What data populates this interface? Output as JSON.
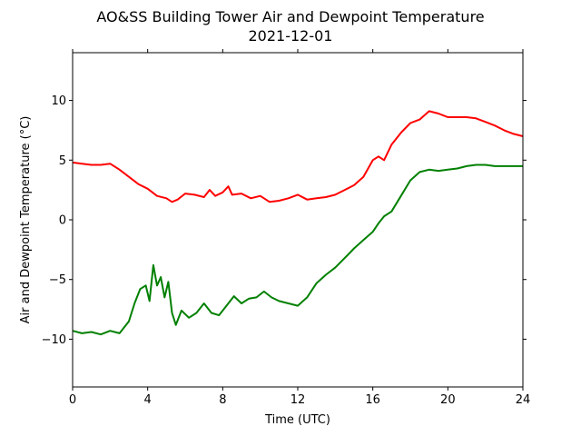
{
  "chart_data": {
    "type": "line",
    "title": "AO&SS Building Tower Air and Dewpoint Temperature",
    "subtitle": "2021-12-01",
    "xlabel": "Time (UTC)",
    "ylabel": "Air and Dewpoint Temperature (°C)",
    "xlim": [
      0,
      24
    ],
    "ylim": [
      -14,
      14
    ],
    "xticks": [
      0,
      4,
      8,
      12,
      16,
      20,
      24
    ],
    "yticks": [
      -10,
      -5,
      0,
      5,
      10
    ],
    "grid": false,
    "legend": "none",
    "series": [
      {
        "color": "#ff0000",
        "x": [
          0,
          0.5,
          1,
          1.5,
          2,
          2.5,
          3,
          3.5,
          4,
          4.5,
          5,
          5.3,
          5.6,
          6,
          6.5,
          7,
          7.3,
          7.6,
          8,
          8.3,
          8.5,
          9,
          9.5,
          10,
          10.5,
          11,
          11.5,
          12,
          12.5,
          13,
          13.5,
          14,
          14.5,
          15,
          15.5,
          16,
          16.3,
          16.6,
          17,
          17.5,
          18,
          18.5,
          19,
          19.5,
          20,
          20.5,
          21,
          21.5,
          22,
          22.5,
          23,
          23.5,
          24
        ],
        "y": [
          4.8,
          4.7,
          4.6,
          4.6,
          4.7,
          4.2,
          3.6,
          3.0,
          2.6,
          2.0,
          1.8,
          1.5,
          1.7,
          2.2,
          2.1,
          1.9,
          2.5,
          2.0,
          2.3,
          2.8,
          2.1,
          2.2,
          1.8,
          2.0,
          1.5,
          1.6,
          1.8,
          2.1,
          1.7,
          1.8,
          1.9,
          2.1,
          2.5,
          2.9,
          3.6,
          5.0,
          5.3,
          5.0,
          6.3,
          7.3,
          8.1,
          8.4,
          9.1,
          8.9,
          8.6,
          8.6,
          8.6,
          8.5,
          8.2,
          7.9,
          7.5,
          7.2,
          7.0
        ]
      },
      {
        "color": "#008000",
        "x": [
          0,
          0.5,
          1,
          1.5,
          2,
          2.5,
          3,
          3.3,
          3.6,
          3.9,
          4.1,
          4.3,
          4.5,
          4.7,
          4.9,
          5.1,
          5.3,
          5.5,
          5.8,
          6.2,
          6.6,
          7,
          7.4,
          7.8,
          8.2,
          8.6,
          9,
          9.4,
          9.8,
          10.2,
          10.6,
          11,
          11.5,
          12,
          12.5,
          13,
          13.5,
          14,
          14.5,
          15,
          15.5,
          16,
          16.3,
          16.6,
          17,
          17.5,
          18,
          18.5,
          19,
          19.5,
          20,
          20.5,
          21,
          21.5,
          22,
          22.5,
          23,
          23.5,
          24
        ],
        "y": [
          -9.3,
          -9.5,
          -9.4,
          -9.6,
          -9.3,
          -9.5,
          -8.5,
          -7.0,
          -5.8,
          -5.5,
          -6.8,
          -3.8,
          -5.5,
          -4.8,
          -6.5,
          -5.2,
          -7.8,
          -8.8,
          -7.6,
          -8.2,
          -7.8,
          -7.0,
          -7.8,
          -8.0,
          -7.2,
          -6.4,
          -7.0,
          -6.6,
          -6.5,
          -6.0,
          -6.5,
          -6.8,
          -7.0,
          -7.2,
          -6.5,
          -5.3,
          -4.6,
          -4.0,
          -3.2,
          -2.4,
          -1.7,
          -1.0,
          -0.3,
          0.3,
          0.7,
          2.0,
          3.3,
          4.0,
          4.2,
          4.1,
          4.2,
          4.3,
          4.5,
          4.6,
          4.6,
          4.5,
          4.5,
          4.5,
          4.5
        ]
      }
    ]
  }
}
